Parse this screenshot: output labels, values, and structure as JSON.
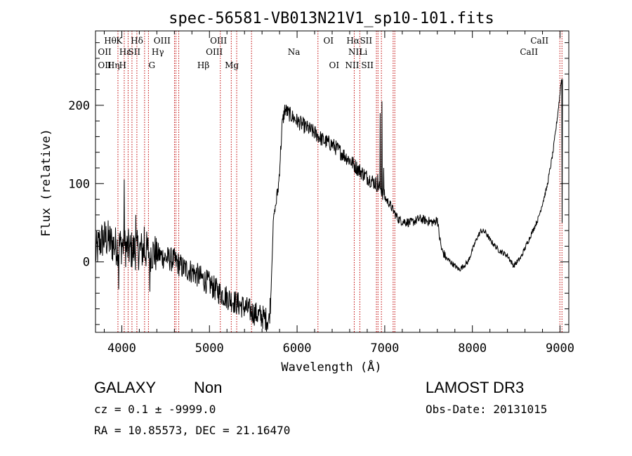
{
  "chart_data": {
    "type": "line",
    "title": "spec-56581-VB013N21V1_sp10-101.fits",
    "xlabel": "Wavelength (Å)",
    "ylabel": "Flux (relative)",
    "xlim": [
      3700,
      9100
    ],
    "ylim": [
      -90,
      295
    ],
    "x_ticks": [
      {
        "value": 4000,
        "label": "4000"
      },
      {
        "value": 5000,
        "label": "5000"
      },
      {
        "value": 6000,
        "label": "6000"
      },
      {
        "value": 7000,
        "label": "7000"
      },
      {
        "value": 8000,
        "label": "8000"
      },
      {
        "value": 9000,
        "label": "9000"
      }
    ],
    "y_ticks": [
      {
        "value": 0,
        "label": "0"
      },
      {
        "value": 100,
        "label": "100"
      },
      {
        "value": 200,
        "label": "200"
      }
    ],
    "series": [
      {
        "name": "spectrum",
        "anchors": [
          [
            3700,
            10
          ],
          [
            3750,
            25
          ],
          [
            3800,
            30
          ],
          [
            3850,
            28
          ],
          [
            3900,
            22
          ],
          [
            3950,
            20
          ],
          [
            4000,
            22
          ],
          [
            4050,
            18
          ],
          [
            4100,
            15
          ],
          [
            4200,
            15
          ],
          [
            4300,
            14
          ],
          [
            4400,
            10
          ],
          [
            4500,
            5
          ],
          [
            4600,
            2
          ],
          [
            4700,
            -8
          ],
          [
            4800,
            -12
          ],
          [
            4900,
            -20
          ],
          [
            5000,
            -28
          ],
          [
            5100,
            -38
          ],
          [
            5200,
            -45
          ],
          [
            5300,
            -52
          ],
          [
            5400,
            -58
          ],
          [
            5500,
            -65
          ],
          [
            5600,
            -70
          ],
          [
            5680,
            -75
          ],
          [
            5700,
            -45
          ],
          [
            5730,
            55
          ],
          [
            5760,
            75
          ],
          [
            5790,
            100
          ],
          [
            5830,
            175
          ],
          [
            5860,
            195
          ],
          [
            5900,
            190
          ],
          [
            6000,
            180
          ],
          [
            6100,
            172
          ],
          [
            6200,
            165
          ],
          [
            6300,
            155
          ],
          [
            6400,
            150
          ],
          [
            6500,
            140
          ],
          [
            6600,
            130
          ],
          [
            6700,
            118
          ],
          [
            6800,
            108
          ],
          [
            6900,
            100
          ],
          [
            6950,
            95
          ],
          [
            7000,
            82
          ],
          [
            7050,
            75
          ],
          [
            7100,
            65
          ],
          [
            7150,
            55
          ],
          [
            7200,
            52
          ],
          [
            7300,
            50
          ],
          [
            7400,
            55
          ],
          [
            7500,
            52
          ],
          [
            7560,
            50
          ],
          [
            7600,
            55
          ],
          [
            7620,
            35
          ],
          [
            7650,
            15
          ],
          [
            7700,
            5
          ],
          [
            7750,
            0
          ],
          [
            7800,
            -5
          ],
          [
            7850,
            -10
          ],
          [
            7900,
            -5
          ],
          [
            7950,
            0
          ],
          [
            8000,
            15
          ],
          [
            8050,
            30
          ],
          [
            8100,
            40
          ],
          [
            8150,
            38
          ],
          [
            8200,
            28
          ],
          [
            8300,
            15
          ],
          [
            8400,
            8
          ],
          [
            8470,
            -5
          ],
          [
            8550,
            5
          ],
          [
            8650,
            30
          ],
          [
            8750,
            55
          ],
          [
            8850,
            95
          ],
          [
            8920,
            140
          ],
          [
            8970,
            185
          ],
          [
            9000,
            215
          ],
          [
            9010,
            230
          ],
          [
            9030,
            235
          ]
        ],
        "spikes": [
          {
            "x": 4030,
            "y": 105
          },
          {
            "x": 3965,
            "y": -35
          },
          {
            "x": 4160,
            "y": 60
          },
          {
            "x": 4255,
            "y": 45
          },
          {
            "x": 4320,
            "y": -38
          },
          {
            "x": 6920,
            "y": 112
          },
          {
            "x": 6950,
            "y": 190
          },
          {
            "x": 6968,
            "y": 205
          },
          {
            "x": 6990,
            "y": 120
          },
          {
            "x": 9025,
            "y": 50
          }
        ]
      }
    ],
    "annotations": [
      {
        "label": "Hθ",
        "x": 3798,
        "row": 1
      },
      {
        "label": "K",
        "x": 3934,
        "row": 1
      },
      {
        "label": "Hδ",
        "x": 4102,
        "row": 1
      },
      {
        "label": "OIII",
        "x": 4363,
        "row": 1
      },
      {
        "label": "OIII",
        "x": 5007,
        "row": 1
      },
      {
        "label": "OI",
        "x": 6300,
        "row": 1
      },
      {
        "label": "Hα",
        "x": 6563,
        "row": 1
      },
      {
        "label": "SII",
        "x": 6716,
        "row": 1
      },
      {
        "label": "CaII",
        "x": 8662,
        "row": 1
      },
      {
        "label": "OII",
        "x": 3727,
        "row": 2
      },
      {
        "label": "Hε",
        "x": 3970,
        "row": 2
      },
      {
        "label": "SII",
        "x": 4072,
        "row": 2
      },
      {
        "label": "Hγ",
        "x": 4340,
        "row": 2
      },
      {
        "label": "OIII",
        "x": 4959,
        "row": 2
      },
      {
        "label": "Na",
        "x": 5893,
        "row": 2
      },
      {
        "label": "NII",
        "x": 6584,
        "row": 2
      },
      {
        "label": "Li",
        "x": 6708,
        "row": 2
      },
      {
        "label": "CaII",
        "x": 8542,
        "row": 2
      },
      {
        "label": "OII",
        "x": 3727,
        "row": 3
      },
      {
        "label": "Hη",
        "x": 3835,
        "row": 3
      },
      {
        "label": "H",
        "x": 3968,
        "row": 3
      },
      {
        "label": "G",
        "x": 4305,
        "row": 3
      },
      {
        "label": "Hβ",
        "x": 4861,
        "row": 3
      },
      {
        "label": "Mg",
        "x": 5175,
        "row": 3
      },
      {
        "label": "OI",
        "x": 6364,
        "row": 3
      },
      {
        "label": "NII",
        "x": 6548,
        "row": 3
      },
      {
        "label": "SII",
        "x": 6731,
        "row": 3
      }
    ],
    "line_markers": [
      3956,
      4028,
      4072,
      4116,
      4172,
      4260,
      4304,
      4601,
      4618,
      4650,
      5124,
      5249,
      5311,
      5480,
      6238,
      6652,
      6716,
      6905,
      6923,
      6962,
      7096,
      7115,
      8998,
      9022
    ],
    "line_marker_color": "#c00000"
  },
  "info": {
    "class": "GALAXY",
    "subclass": "Non",
    "survey": "LAMOST DR3",
    "cz_line": "cz = 0.1 ± -9999.0",
    "obs_date_line": "Obs-Date: 20131015",
    "radec_line": "RA =  10.85573, DEC =  21.16470"
  }
}
